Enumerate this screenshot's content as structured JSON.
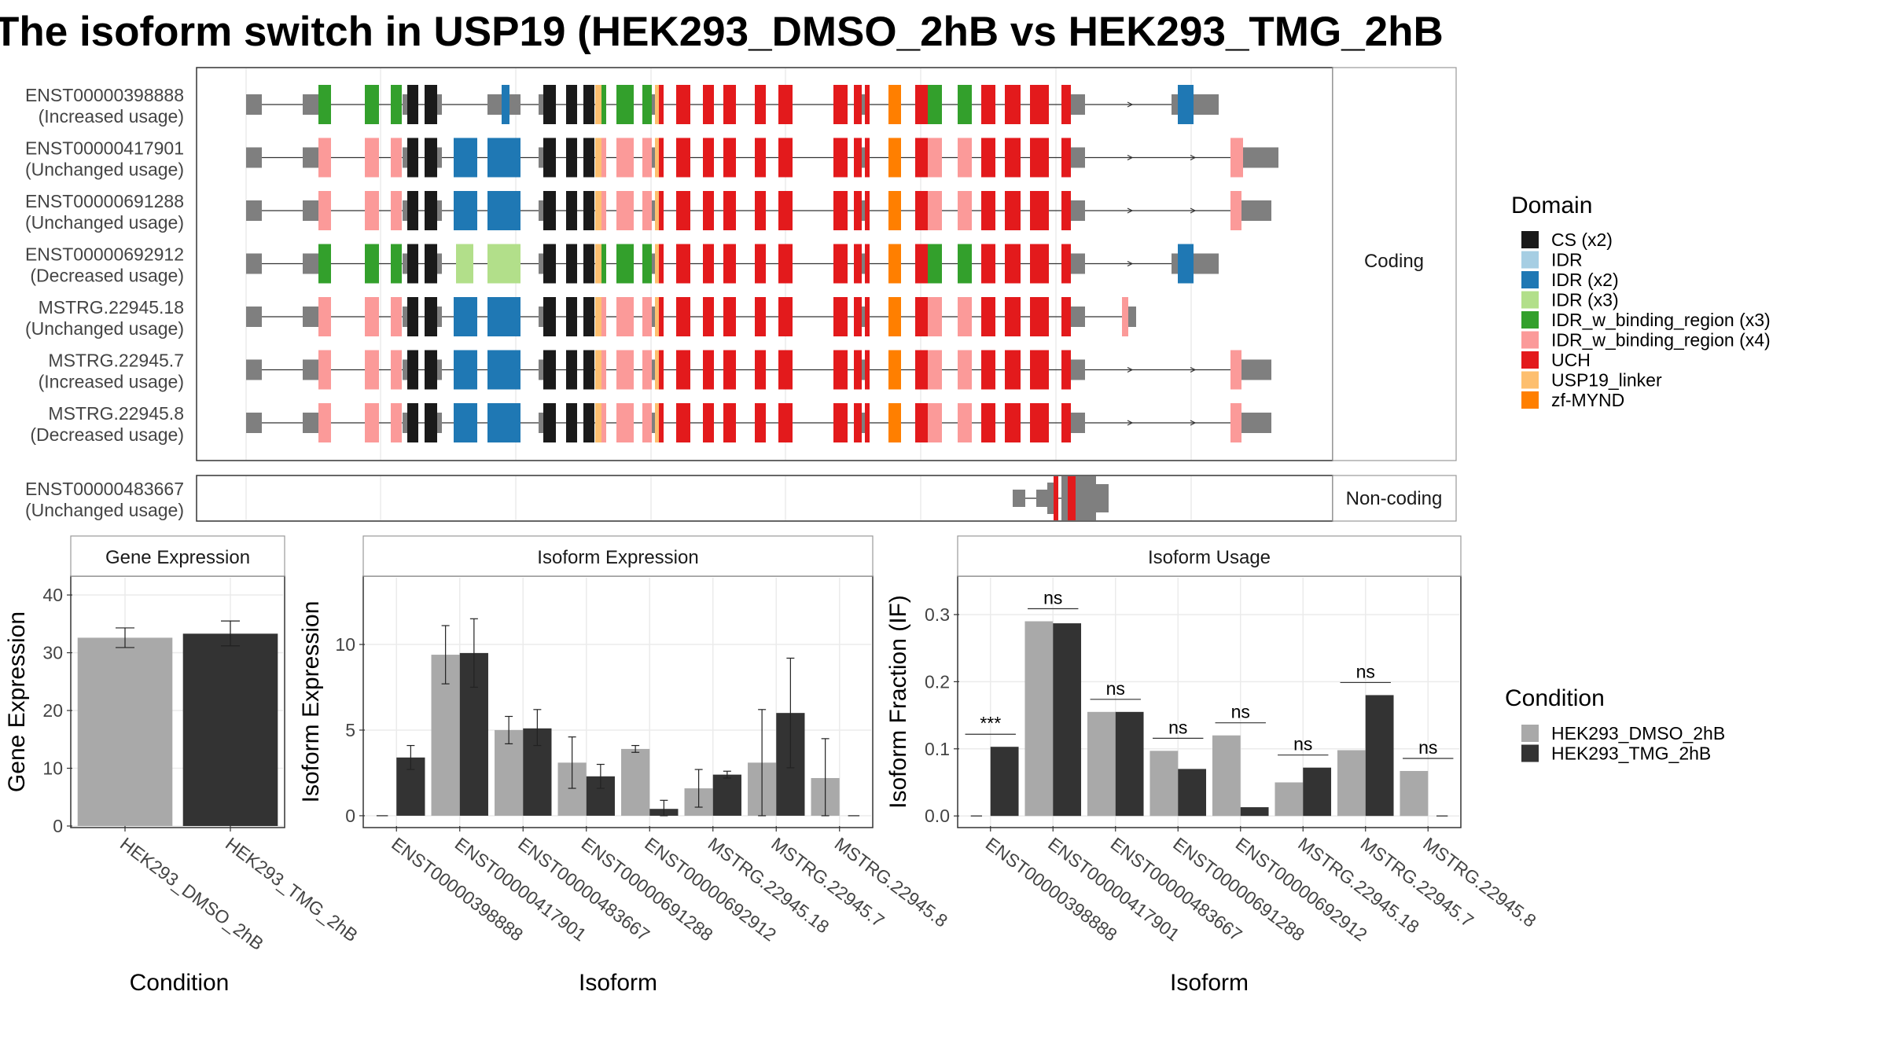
{
  "title": "The isoform switch in USP19 (HEK293_DMSO_2hB vs HEK293_TMG_2hB",
  "facets": {
    "coding": "Coding",
    "noncoding": "Non-coding"
  },
  "isoforms": [
    {
      "id": "ENST00000398888",
      "usage": "(Increased usage)",
      "group": "coding",
      "variant": "A",
      "tail": "short"
    },
    {
      "id": "ENST00000417901",
      "usage": "(Unchanged usage)",
      "group": "coding",
      "variant": "B",
      "tail": "long"
    },
    {
      "id": "ENST00000691288",
      "usage": "(Unchanged usage)",
      "group": "coding",
      "variant": "C",
      "tail": "medium"
    },
    {
      "id": "ENST00000692912",
      "usage": "(Decreased usage)",
      "group": "coding",
      "variant": "D",
      "tail": "short"
    },
    {
      "id": "MSTRG.22945.18",
      "usage": "(Unchanged usage)",
      "group": "coding",
      "variant": "B",
      "tail": "truncated"
    },
    {
      "id": "MSTRG.22945.7",
      "usage": "(Increased usage)",
      "group": "coding",
      "variant": "B",
      "tail": "medium"
    },
    {
      "id": "MSTRG.22945.8",
      "usage": "(Decreased usage)",
      "group": "coding",
      "variant": "B",
      "tail": "medium"
    },
    {
      "id": "ENST00000483667",
      "usage": "(Unchanged usage)",
      "group": "noncoding",
      "variant": "N",
      "tail": "none"
    }
  ],
  "domain_legend": {
    "title": "Domain",
    "items": [
      {
        "label": "CS (x2)",
        "color": "#1a1a1a"
      },
      {
        "label": "IDR",
        "color": "#a6cee3"
      },
      {
        "label": "IDR (x2)",
        "color": "#1f78b4"
      },
      {
        "label": "IDR (x3)",
        "color": "#b2df8a"
      },
      {
        "label": "IDR_w_binding_region (x3)",
        "color": "#33a02c"
      },
      {
        "label": "IDR_w_binding_region (x4)",
        "color": "#fb9a99"
      },
      {
        "label": "UCH",
        "color": "#e31a1c"
      },
      {
        "label": "USP19_linker",
        "color": "#fdbf6f"
      },
      {
        "label": "zf-MYND",
        "color": "#ff7f00"
      }
    ]
  },
  "condition_legend": {
    "title": "Condition",
    "items": [
      {
        "label": "HEK293_DMSO_2hB",
        "color": "#a9a9a9"
      },
      {
        "label": "HEK293_TMG_2hB",
        "color": "#333333"
      }
    ]
  },
  "chart_data": [
    {
      "type": "bar",
      "title": "Gene Expression",
      "xlabel": "Condition",
      "ylabel": "Gene Expression",
      "categories": [
        "HEK293_DMSO_2hB",
        "HEK293_TMG_2hB"
      ],
      "values": [
        32.6,
        33.3
      ],
      "error_low": [
        30.9,
        31.2
      ],
      "error_high": [
        34.3,
        35.5
      ],
      "colors": [
        "#a9a9a9",
        "#333333"
      ],
      "ylim": [
        0,
        43
      ],
      "yticks": [
        0,
        10,
        20,
        30,
        40
      ]
    },
    {
      "type": "bar",
      "title": "Isoform Expression",
      "xlabel": "Isoform",
      "ylabel": "Isoform Expression",
      "categories": [
        "ENST00000398888",
        "ENST00000417901",
        "ENST00000483667",
        "ENST00000691288",
        "ENST00000692912",
        "MSTRG.22945.18",
        "MSTRG.22945.7",
        "MSTRG.22945.8"
      ],
      "series": [
        {
          "name": "HEK293_DMSO_2hB",
          "values": [
            0.0,
            9.4,
            5.0,
            3.1,
            3.9,
            1.6,
            3.1,
            2.2
          ],
          "error_low": [
            0.0,
            7.7,
            4.2,
            1.6,
            3.7,
            0.5,
            0.0,
            0.0
          ],
          "error_high": [
            0.0,
            11.1,
            5.8,
            4.6,
            4.1,
            2.7,
            6.2,
            4.5
          ]
        },
        {
          "name": "HEK293_TMG_2hB",
          "values": [
            3.4,
            9.5,
            5.1,
            2.3,
            0.4,
            2.4,
            6.0,
            0.0
          ],
          "error_low": [
            2.7,
            7.5,
            4.1,
            1.6,
            0.0,
            2.2,
            2.8,
            0.0
          ],
          "error_high": [
            4.1,
            11.5,
            6.2,
            3.0,
            0.9,
            2.6,
            9.2,
            0.0
          ]
        }
      ],
      "ylim": [
        -0.6,
        13.9
      ],
      "yticks": [
        0,
        5,
        10
      ]
    },
    {
      "type": "bar",
      "title": "Isoform Usage",
      "xlabel": "Isoform",
      "ylabel": "Isoform Fraction (IF)",
      "categories": [
        "ENST00000398888",
        "ENST00000417901",
        "ENST00000483667",
        "ENST00000691288",
        "ENST00000692912",
        "MSTRG.22945.18",
        "MSTRG.22945.7",
        "MSTRG.22945.8"
      ],
      "series": [
        {
          "name": "HEK293_DMSO_2hB",
          "values": [
            0.0,
            0.29,
            0.155,
            0.097,
            0.12,
            0.05,
            0.098,
            0.067
          ]
        },
        {
          "name": "HEK293_TMG_2hB",
          "values": [
            0.103,
            0.287,
            0.155,
            0.07,
            0.013,
            0.072,
            0.18,
            0.0
          ]
        }
      ],
      "significance": [
        "***",
        "ns",
        "ns",
        "ns",
        "ns",
        "ns",
        "ns",
        "ns"
      ],
      "ylim": [
        -0.015,
        0.355
      ],
      "yticks": [
        0.0,
        0.1,
        0.2,
        0.3
      ],
      "ytick_labels": [
        "0.0",
        "0.1",
        "0.2",
        "0.3"
      ]
    }
  ]
}
